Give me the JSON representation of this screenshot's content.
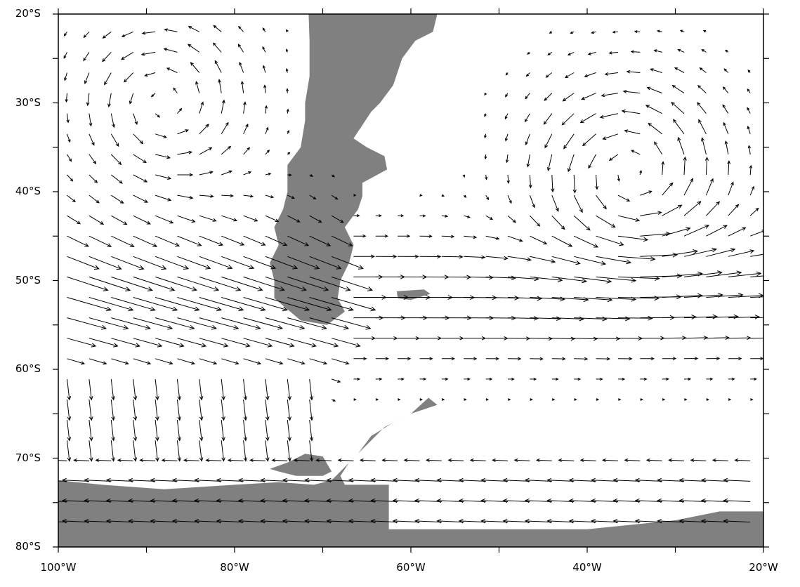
{
  "map": {
    "projection": "lat-lon",
    "lon_range": [
      -100,
      -20
    ],
    "lat_range": [
      -80,
      -20
    ],
    "land_color": "#808080",
    "ocean_color": "#ffffff",
    "vector_color": "#000000",
    "layer": "wind-vectors"
  },
  "axes": {
    "y_ticks": [
      {
        "value": -20,
        "label": "20°S"
      },
      {
        "value": -30,
        "label": "30°S"
      },
      {
        "value": -40,
        "label": "40°S"
      },
      {
        "value": -50,
        "label": "50°S"
      },
      {
        "value": -60,
        "label": "60°S"
      },
      {
        "value": -70,
        "label": "70°S"
      },
      {
        "value": -80,
        "label": "80°S"
      }
    ],
    "x_ticks": [
      {
        "value": -100,
        "label": "100°W"
      },
      {
        "value": -80,
        "label": "80°W"
      },
      {
        "value": -60,
        "label": "60°W"
      },
      {
        "value": -40,
        "label": "40°W"
      },
      {
        "value": -20,
        "label": "20°W"
      }
    ]
  },
  "landmasses": [
    {
      "name": "south-america",
      "points": [
        [
          -71.6,
          -20
        ],
        [
          -57,
          -20
        ],
        [
          -57.5,
          -22
        ],
        [
          -59.5,
          -23
        ],
        [
          -61,
          -25
        ],
        [
          -62,
          -28
        ],
        [
          -63.5,
          -30
        ],
        [
          -64.5,
          -31
        ],
        [
          -65.5,
          -32.5
        ],
        [
          -66.5,
          -34
        ],
        [
          -65,
          -35
        ],
        [
          -63,
          -36
        ],
        [
          -62.7,
          -37.5
        ],
        [
          -65.5,
          -39
        ],
        [
          -65.5,
          -40.5
        ],
        [
          -66,
          -42
        ],
        [
          -67.5,
          -44
        ],
        [
          -66.5,
          -46
        ],
        [
          -67,
          -48
        ],
        [
          -68,
          -50
        ],
        [
          -68.3,
          -52
        ],
        [
          -67.5,
          -53.5
        ],
        [
          -69.5,
          -55
        ],
        [
          -72.5,
          -54.5
        ],
        [
          -75.5,
          -52
        ],
        [
          -75.5,
          -50
        ],
        [
          -76,
          -48
        ],
        [
          -75,
          -46
        ],
        [
          -75.5,
          -44
        ],
        [
          -74.5,
          -42
        ],
        [
          -74,
          -40
        ],
        [
          -74,
          -37
        ],
        [
          -72.5,
          -35
        ],
        [
          -72,
          -32
        ],
        [
          -72,
          -30
        ],
        [
          -71.5,
          -27
        ],
        [
          -71.5,
          -23
        ]
      ]
    },
    {
      "name": "falklands",
      "points": [
        [
          -61.6,
          -51.2
        ],
        [
          -58.5,
          -51
        ],
        [
          -57.8,
          -51.5
        ],
        [
          -60,
          -52.2
        ],
        [
          -61.5,
          -52
        ]
      ]
    },
    {
      "name": "antarctic-peninsula",
      "points": [
        [
          -58,
          -63.2
        ],
        [
          -57,
          -64
        ],
        [
          -60,
          -65
        ],
        [
          -63,
          -66.5
        ],
        [
          -65,
          -68.5
        ],
        [
          -67,
          -70.5
        ],
        [
          -68,
          -72
        ],
        [
          -67.5,
          -73
        ],
        [
          -62.5,
          -73
        ],
        [
          -62.5,
          -78
        ],
        [
          -60,
          -78
        ],
        [
          -40,
          -78
        ],
        [
          -30,
          -77
        ],
        [
          -25,
          -76
        ],
        [
          -20,
          -76
        ],
        [
          -20,
          -80
        ],
        [
          -100,
          -80
        ],
        [
          -100,
          -72.5
        ],
        [
          -95,
          -73
        ],
        [
          -88,
          -73.5
        ],
        [
          -80,
          -73
        ],
        [
          -75,
          -72.7
        ],
        [
          -71,
          -73
        ],
        [
          -69,
          -72.5
        ],
        [
          -67.5,
          -71
        ],
        [
          -66,
          -69.5
        ],
        [
          -64.5,
          -67.5
        ],
        [
          -62,
          -66
        ],
        [
          -60,
          -65
        ]
      ]
    },
    {
      "name": "alexander-island",
      "points": [
        [
          -72,
          -69.5
        ],
        [
          -70,
          -69.8
        ],
        [
          -69,
          -71.5
        ],
        [
          -70,
          -72
        ],
        [
          -73,
          -72
        ],
        [
          -75,
          -71.5
        ],
        [
          -76,
          -71.2
        ],
        [
          -74,
          -70.5
        ]
      ]
    }
  ],
  "features": {
    "westerly_jet_lat": -52,
    "anticyclone_centers": [
      [
        -35,
        -38
      ],
      [
        -88,
        -30
      ]
    ]
  }
}
